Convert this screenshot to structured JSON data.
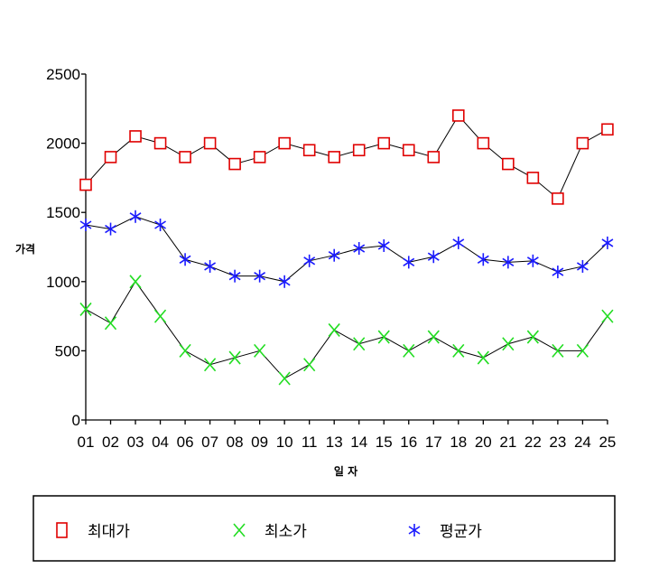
{
  "chart_data": {
    "type": "line",
    "title": "",
    "xlabel": "일 자",
    "ylabel": "가격",
    "ylim": [
      0,
      2500
    ],
    "yticks": [
      0,
      500,
      1000,
      1500,
      2000,
      2500
    ],
    "grid": false,
    "legend_position": "bottom",
    "categories": [
      "01",
      "02",
      "03",
      "04",
      "06",
      "07",
      "08",
      "09",
      "10",
      "11",
      "13",
      "14",
      "15",
      "16",
      "17",
      "18",
      "20",
      "21",
      "22",
      "23",
      "24",
      "25"
    ],
    "series": [
      {
        "name": "최대가",
        "marker": "square",
        "color": "#e00000",
        "values": [
          1700,
          1900,
          2050,
          2000,
          1900,
          2000,
          1850,
          1900,
          2000,
          1950,
          1900,
          1950,
          2000,
          1950,
          1900,
          2200,
          2000,
          1850,
          1750,
          1600,
          2000,
          2100
        ]
      },
      {
        "name": "최소가",
        "marker": "x",
        "color": "#22dd22",
        "values": [
          800,
          700,
          1000,
          750,
          500,
          400,
          450,
          500,
          300,
          400,
          650,
          550,
          600,
          500,
          600,
          500,
          450,
          550,
          600,
          500,
          500,
          750
        ]
      },
      {
        "name": "평균가",
        "marker": "asterisk",
        "color": "#1a1aff",
        "values": [
          1410,
          1380,
          1470,
          1410,
          1160,
          1110,
          1040,
          1040,
          1000,
          1150,
          1190,
          1240,
          1260,
          1140,
          1180,
          1280,
          1160,
          1140,
          1150,
          1070,
          1110,
          1280
        ]
      }
    ]
  }
}
